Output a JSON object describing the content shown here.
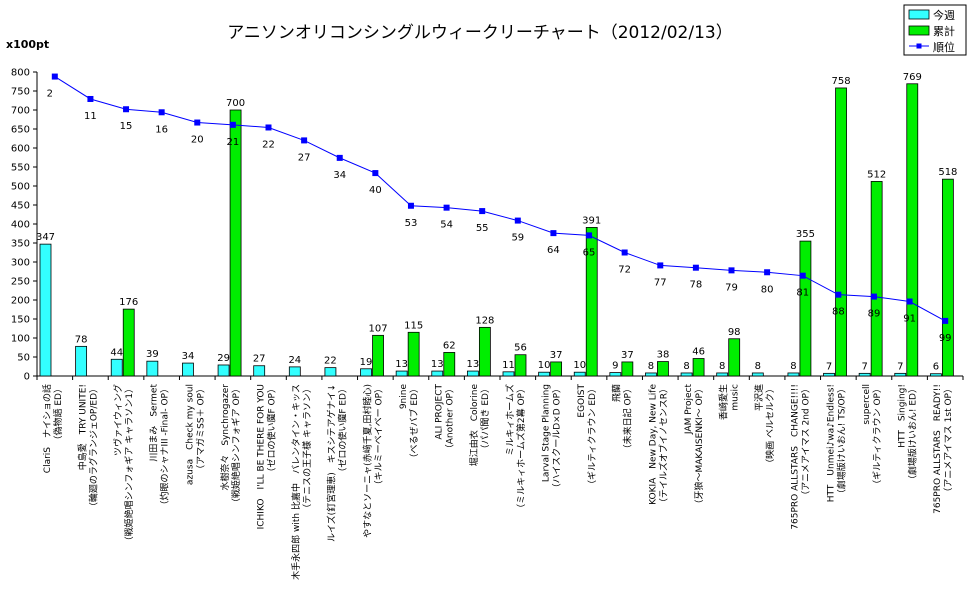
{
  "chart_data": {
    "type": "bar",
    "title": "アニソンオリコンシングルウィークリーチャート（2012/02/13）",
    "unit_label": "x100pt",
    "ylim": [
      0,
      800
    ],
    "yticks": [
      0,
      50,
      100,
      150,
      200,
      250,
      300,
      350,
      400,
      450,
      500,
      550,
      600,
      650,
      700,
      750,
      800
    ],
    "rank_axis_note": "rank plotted on same scale as line",
    "grid": false,
    "legend_position": "top-right",
    "categories": [
      [
        "ClariS　ナイショの話",
        "（偽物語 ED）"
      ],
      [
        "中島愛　TRY UNITE!",
        "（輪廻のラグランジェOP/ED）"
      ],
      [
        "ツヴァイウィング",
        "（戦姫絶唱シンフォギア キャラソン1）"
      ],
      [
        "川田まみ　Sermet",
        "（灼眼のシャナIII -Final- OP）"
      ],
      [
        "azusa　Check my soul",
        "（アマガミSS＋ OP）"
      ],
      [
        "水樹奈々　Synchrogazer",
        "（戦姫絶唱シンフォギア OP）"
      ],
      [
        "ICHIKO　I'LL BE THERE FOR YOU",
        "（ゼロの使い魔F OP）"
      ],
      [
        "木手永四郎 with 比嘉中　バレンタイン・キッス",
        "（テニスの王子様 キャラソン）"
      ],
      [
        "ルイズ(釘宮理恵)　キスシテアゲナイ↓",
        "（ゼロの使い魔F ED）"
      ],
      [
        "やすなとソーニャ(赤﨑千夏,田村睦心)",
        "（キルミーベイベー OP）"
      ],
      [
        "9nine",
        "（べるぜバブ ED）"
      ],
      [
        "ALI PROJECT",
        "（Another OP）"
      ],
      [
        "堀江由衣　Colorine",
        "（パパ聞き ED）"
      ],
      [
        "ミルキィホームズ",
        "（ミルキィホームズ第2幕 OP）"
      ],
      [
        "Larval Stage Planning",
        "（ハイスクールD×D OP）"
      ],
      [
        "EGOIST",
        "（ギルティクラウン ED）"
      ],
      [
        "飛蘭",
        "（未来日記 OP）"
      ],
      [
        "KOKIA　New Day, New Life",
        "（テイルズオブイノセンスR）"
      ],
      [
        "JAM Project",
        "（牙狼〜MAKAISENKI〜 OP）"
      ],
      [
        "香崎愛生",
        "music"
      ],
      [
        "平沢進",
        "（映画 ベルセルク）"
      ],
      [
        "765PRO ALLSTARS　CHANGE!!!!",
        "（アニメアイマス 2nd OP）"
      ],
      [
        "HTT　Unmei♪wa♪Endless!",
        "（劇場版けいおん! TS/OP）"
      ],
      [
        "supercell",
        "（ギルティクラウン OP）"
      ],
      [
        "HTT　Singing!",
        "（劇場版けいおん! ED）"
      ],
      [
        "765PRO ALLSTARS　READY!!",
        "（アニメアイマス 1st OP）"
      ]
    ],
    "series": [
      {
        "name": "今週",
        "type": "bar",
        "color": "#33ffff",
        "values": [
          347,
          78,
          44,
          39,
          34,
          29,
          27,
          24,
          22,
          19,
          13,
          13,
          13,
          11,
          10,
          10,
          9,
          8,
          8,
          8,
          8,
          8,
          7,
          7,
          7,
          6
        ]
      },
      {
        "name": "累計",
        "type": "bar",
        "color": "#00ee00",
        "values": [
          null,
          null,
          176,
          null,
          null,
          700,
          null,
          null,
          null,
          107,
          115,
          62,
          128,
          56,
          37,
          391,
          37,
          38,
          46,
          98,
          null,
          355,
          758,
          512,
          769,
          518
        ]
      },
      {
        "name": "順位",
        "type": "line",
        "color": "#0000ff",
        "values": [
          788,
          729,
          702,
          694,
          667,
          661,
          654,
          620,
          574,
          534,
          448,
          443,
          434,
          409,
          376,
          370,
          325,
          291,
          285,
          278,
          273,
          264,
          214,
          209,
          196,
          145
        ],
        "labels": [
          "2",
          "11",
          "15",
          "16",
          "20",
          "21",
          "22",
          "27",
          "34",
          "40",
          "53",
          "54",
          "55",
          "59",
          "64",
          "65",
          "72",
          "77",
          "78",
          "79",
          "80",
          "81",
          "88",
          "89",
          "91",
          "99"
        ]
      }
    ]
  }
}
